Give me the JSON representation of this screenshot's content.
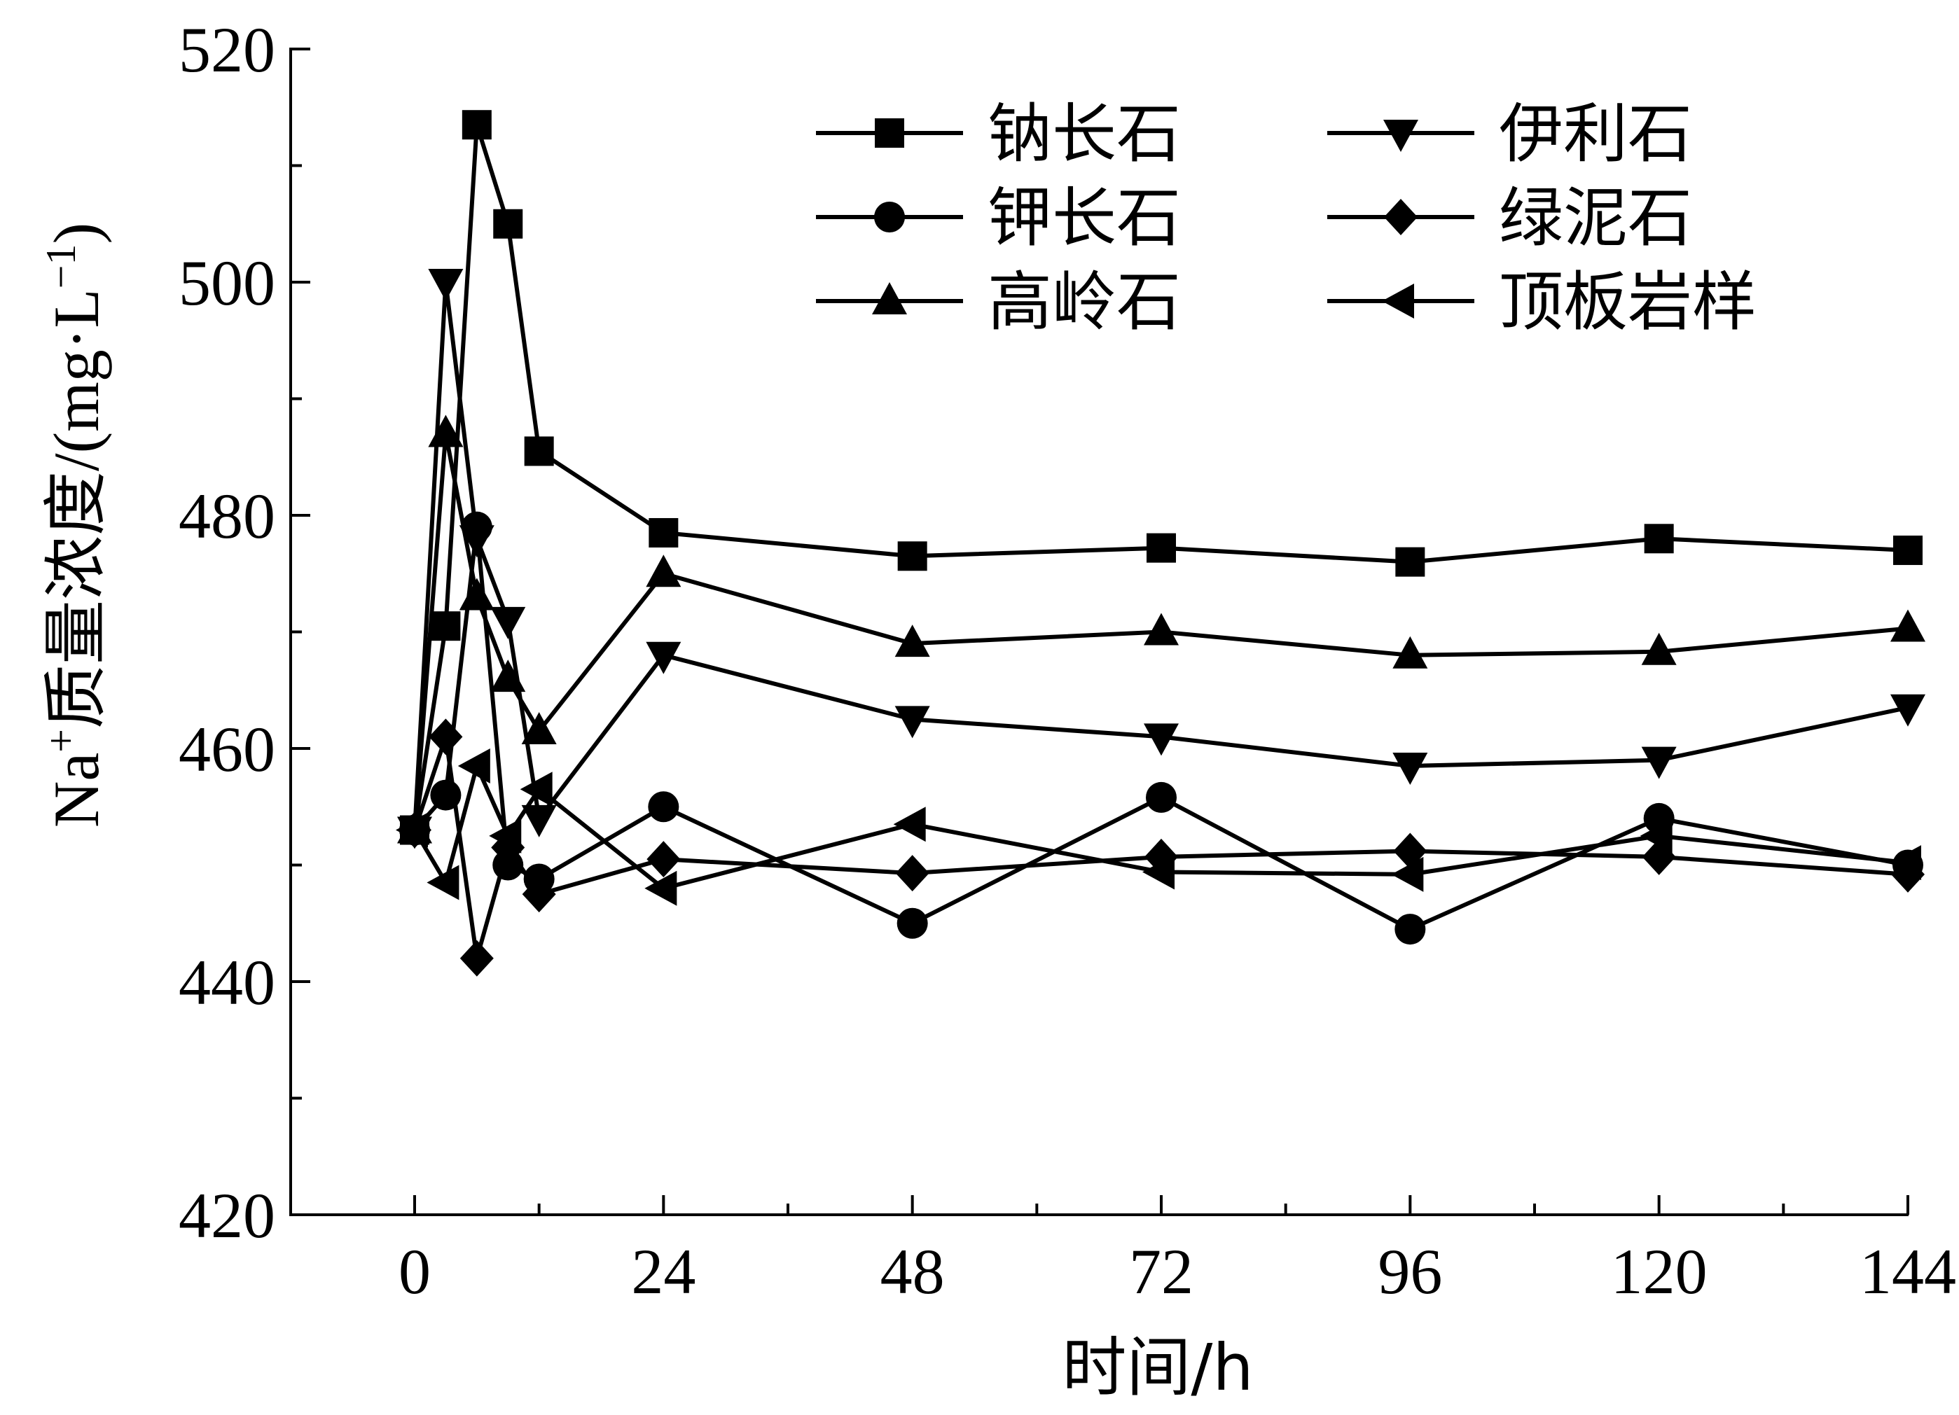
{
  "chart_data": {
    "type": "line",
    "title": "",
    "xlabel": "时间/h",
    "ylabel": {
      "prefix": "Na",
      "superscript": "+",
      "cn": "质量浓度",
      "unit_open": "/(mg·L",
      "unit_sup": "−1",
      "unit_close": ")"
    },
    "xlim": [
      -12,
      144
    ],
    "ylim": [
      420,
      520
    ],
    "xticks": [
      0,
      24,
      48,
      72,
      96,
      120,
      144
    ],
    "yticks": [
      420,
      440,
      460,
      480,
      500,
      520
    ],
    "grid": false,
    "legend_position": "top-right",
    "series": [
      {
        "name": "钠长石",
        "marker": "square",
        "x": [
          0,
          3,
          6,
          9,
          12,
          24,
          48,
          72,
          96,
          120,
          144
        ],
        "y": [
          453,
          470.5,
          513.5,
          505,
          485.5,
          478.5,
          476.5,
          477.2,
          476,
          478,
          477
        ]
      },
      {
        "name": "伊利石",
        "marker": "triangle-down",
        "x": [
          0,
          3,
          6,
          9,
          12,
          24,
          48,
          72,
          96,
          120,
          144
        ],
        "y": [
          453,
          500,
          478,
          471,
          454,
          468,
          462.5,
          461,
          458.5,
          459,
          463.5
        ]
      },
      {
        "name": "钾长石",
        "marker": "circle",
        "x": [
          0,
          3,
          6,
          9,
          12,
          24,
          48,
          72,
          96,
          120,
          144
        ],
        "y": [
          453,
          456,
          479,
          450,
          448.8,
          455,
          445,
          455.8,
          444.5,
          454,
          450
        ]
      },
      {
        "name": "绿泥石",
        "marker": "diamond",
        "x": [
          0,
          3,
          6,
          9,
          12,
          24,
          48,
          72,
          96,
          120,
          144
        ],
        "y": [
          453,
          461,
          442,
          451.5,
          447.5,
          450.5,
          449.3,
          450.7,
          451.2,
          450.7,
          449.2
        ]
      },
      {
        "name": "高岭石",
        "marker": "triangle-up",
        "x": [
          0,
          3,
          6,
          9,
          12,
          24,
          48,
          72,
          96,
          120,
          144
        ],
        "y": [
          453,
          487,
          473,
          466,
          461.5,
          475,
          469,
          470,
          468,
          468.3,
          470.3
        ]
      },
      {
        "name": "顶板岩样",
        "marker": "triangle-left",
        "x": [
          0,
          3,
          6,
          9,
          12,
          24,
          48,
          72,
          96,
          120,
          144
        ],
        "y": [
          453,
          448.5,
          458.5,
          452.5,
          456.5,
          448,
          453.5,
          449.4,
          449.2,
          452.5,
          450.2
        ]
      }
    ]
  }
}
